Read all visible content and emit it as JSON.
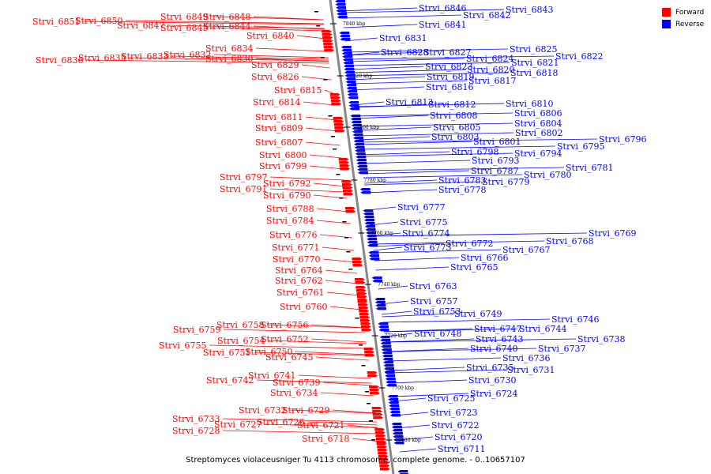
{
  "caption": "Streptomyces violaceusniger Tu 4113 chromosome, complete genome. - 0..10657107",
  "legend": [
    {
      "label": "Forward",
      "color": "#ff0000"
    },
    {
      "label": "Reverse",
      "color": "#0000ff"
    }
  ],
  "colors": {
    "forward": "#ff0000",
    "reverse": "#0000ff",
    "axis": "#888888"
  },
  "scale_labels": [
    "7840 kbp",
    "7820 kbp",
    "7800 kbp",
    "7780 kbp",
    "7760 kbp",
    "7740 kbp",
    "7720 kbp",
    "7700 kbp",
    "7680 kbp"
  ],
  "forward_genes": [
    "Strvi_6851",
    "Strvi_6850",
    "Strvi_6849",
    "Strvi_6848",
    "Strvi_6847",
    "Strvi_6845",
    "Strvi_6844",
    "Strvi_6840",
    "Strvi_6836",
    "Strvi_6835",
    "Strvi_6834",
    "Strvi_6833",
    "Strvi_6832",
    "Strvi_6830",
    "Strvi_6829",
    "Strvi_6826",
    "Strvi_6815",
    "Strvi_6814",
    "Strvi_6811",
    "Strvi_6809",
    "Strvi_6807",
    "Strvi_6800",
    "Strvi_6799",
    "Strvi_6797",
    "Strvi_6792",
    "Strvi_6791",
    "Strvi_6790",
    "Strvi_6788",
    "Strvi_6784",
    "Strvi_6776",
    "Strvi_6771",
    "Strvi_6770",
    "Strvi_6764",
    "Strvi_6762",
    "Strvi_6761",
    "Strvi_6760",
    "Strvi_6759",
    "Strvi_6758",
    "Strvi_6756",
    "Strvi_6755",
    "Strvi_6754",
    "Strvi_6752",
    "Strvi_6751",
    "Strvi_6750",
    "Strvi_6745",
    "Strvi_6742",
    "Strvi_6741",
    "Strvi_6739",
    "Strvi_6734",
    "Strvi_6733",
    "Strvi_6732",
    "Strvi_6729",
    "Strvi_6727",
    "Strvi_6726",
    "Strvi_6728",
    "Strvi_6721",
    "Strvi_6718"
  ],
  "reverse_genes": [
    "Strvi_6846",
    "Strvi_6843",
    "Strvi_6842",
    "Strvi_6841",
    "Strvi_6831",
    "Strvi_6828",
    "Strvi_6827",
    "Strvi_6825",
    "Strvi_6824",
    "Strvi_6822",
    "Strvi_6823",
    "Strvi_6821",
    "Strvi_6820",
    "Strvi_6819",
    "Strvi_6818",
    "Strvi_6817",
    "Strvi_6816",
    "Strvi_6813",
    "Strvi_6812",
    "Strvi_6810",
    "Strvi_6808",
    "Strvi_6806",
    "Strvi_6805",
    "Strvi_6804",
    "Strvi_6803",
    "Strvi_6802",
    "Strvi_6801",
    "Strvi_6796",
    "Strvi_6795",
    "Strvi_6798",
    "Strvi_6794",
    "Strvi_6793",
    "Strvi_6787",
    "Strvi_6781",
    "Strvi_6780",
    "Strvi_6783",
    "Strvi_6779",
    "Strvi_6778",
    "Strvi_6777",
    "Strvi_6775",
    "Strvi_6774",
    "Strvi_6773",
    "Strvi_6772",
    "Strvi_6769",
    "Strvi_6768",
    "Strvi_6767",
    "Strvi_6766",
    "Strvi_6765",
    "Strvi_6763",
    "Strvi_6757",
    "Strvi_6753",
    "Strvi_6749",
    "Strvi_6746",
    "Strvi_6748",
    "Strvi_6747",
    "Strvi_6744",
    "Strvi_6743",
    "Strvi_6738",
    "Strvi_6740",
    "Strvi_6737",
    "Strvi_6736",
    "Strvi_6735",
    "Strvi_6731",
    "Strvi_6730",
    "Strvi_6724",
    "Strvi_6725",
    "Strvi_6723",
    "Strvi_6722",
    "Strvi_6720",
    "Strvi_6711"
  ]
}
